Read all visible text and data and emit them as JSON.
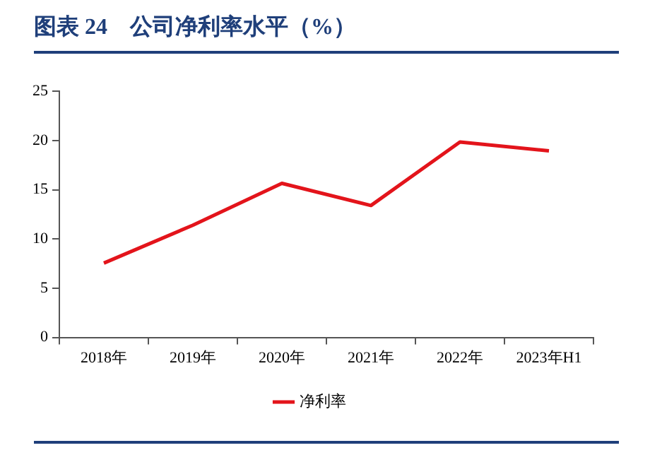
{
  "chart_data": {
    "type": "line",
    "title": "图表 24　公司净利率水平（%）",
    "categories": [
      "2018年",
      "2019年",
      "2020年",
      "2021年",
      "2022年",
      "2023年H1"
    ],
    "series": [
      {
        "name": "净利率",
        "color": "#e3141b",
        "values": [
          7.55,
          11.4,
          15.65,
          13.4,
          19.85,
          18.95
        ]
      }
    ],
    "ylim": [
      0,
      25
    ],
    "yticks": [
      0,
      5,
      10,
      15,
      20,
      25
    ],
    "grid": false,
    "legend": "bottom",
    "marker": "none",
    "line_style": "solid"
  }
}
